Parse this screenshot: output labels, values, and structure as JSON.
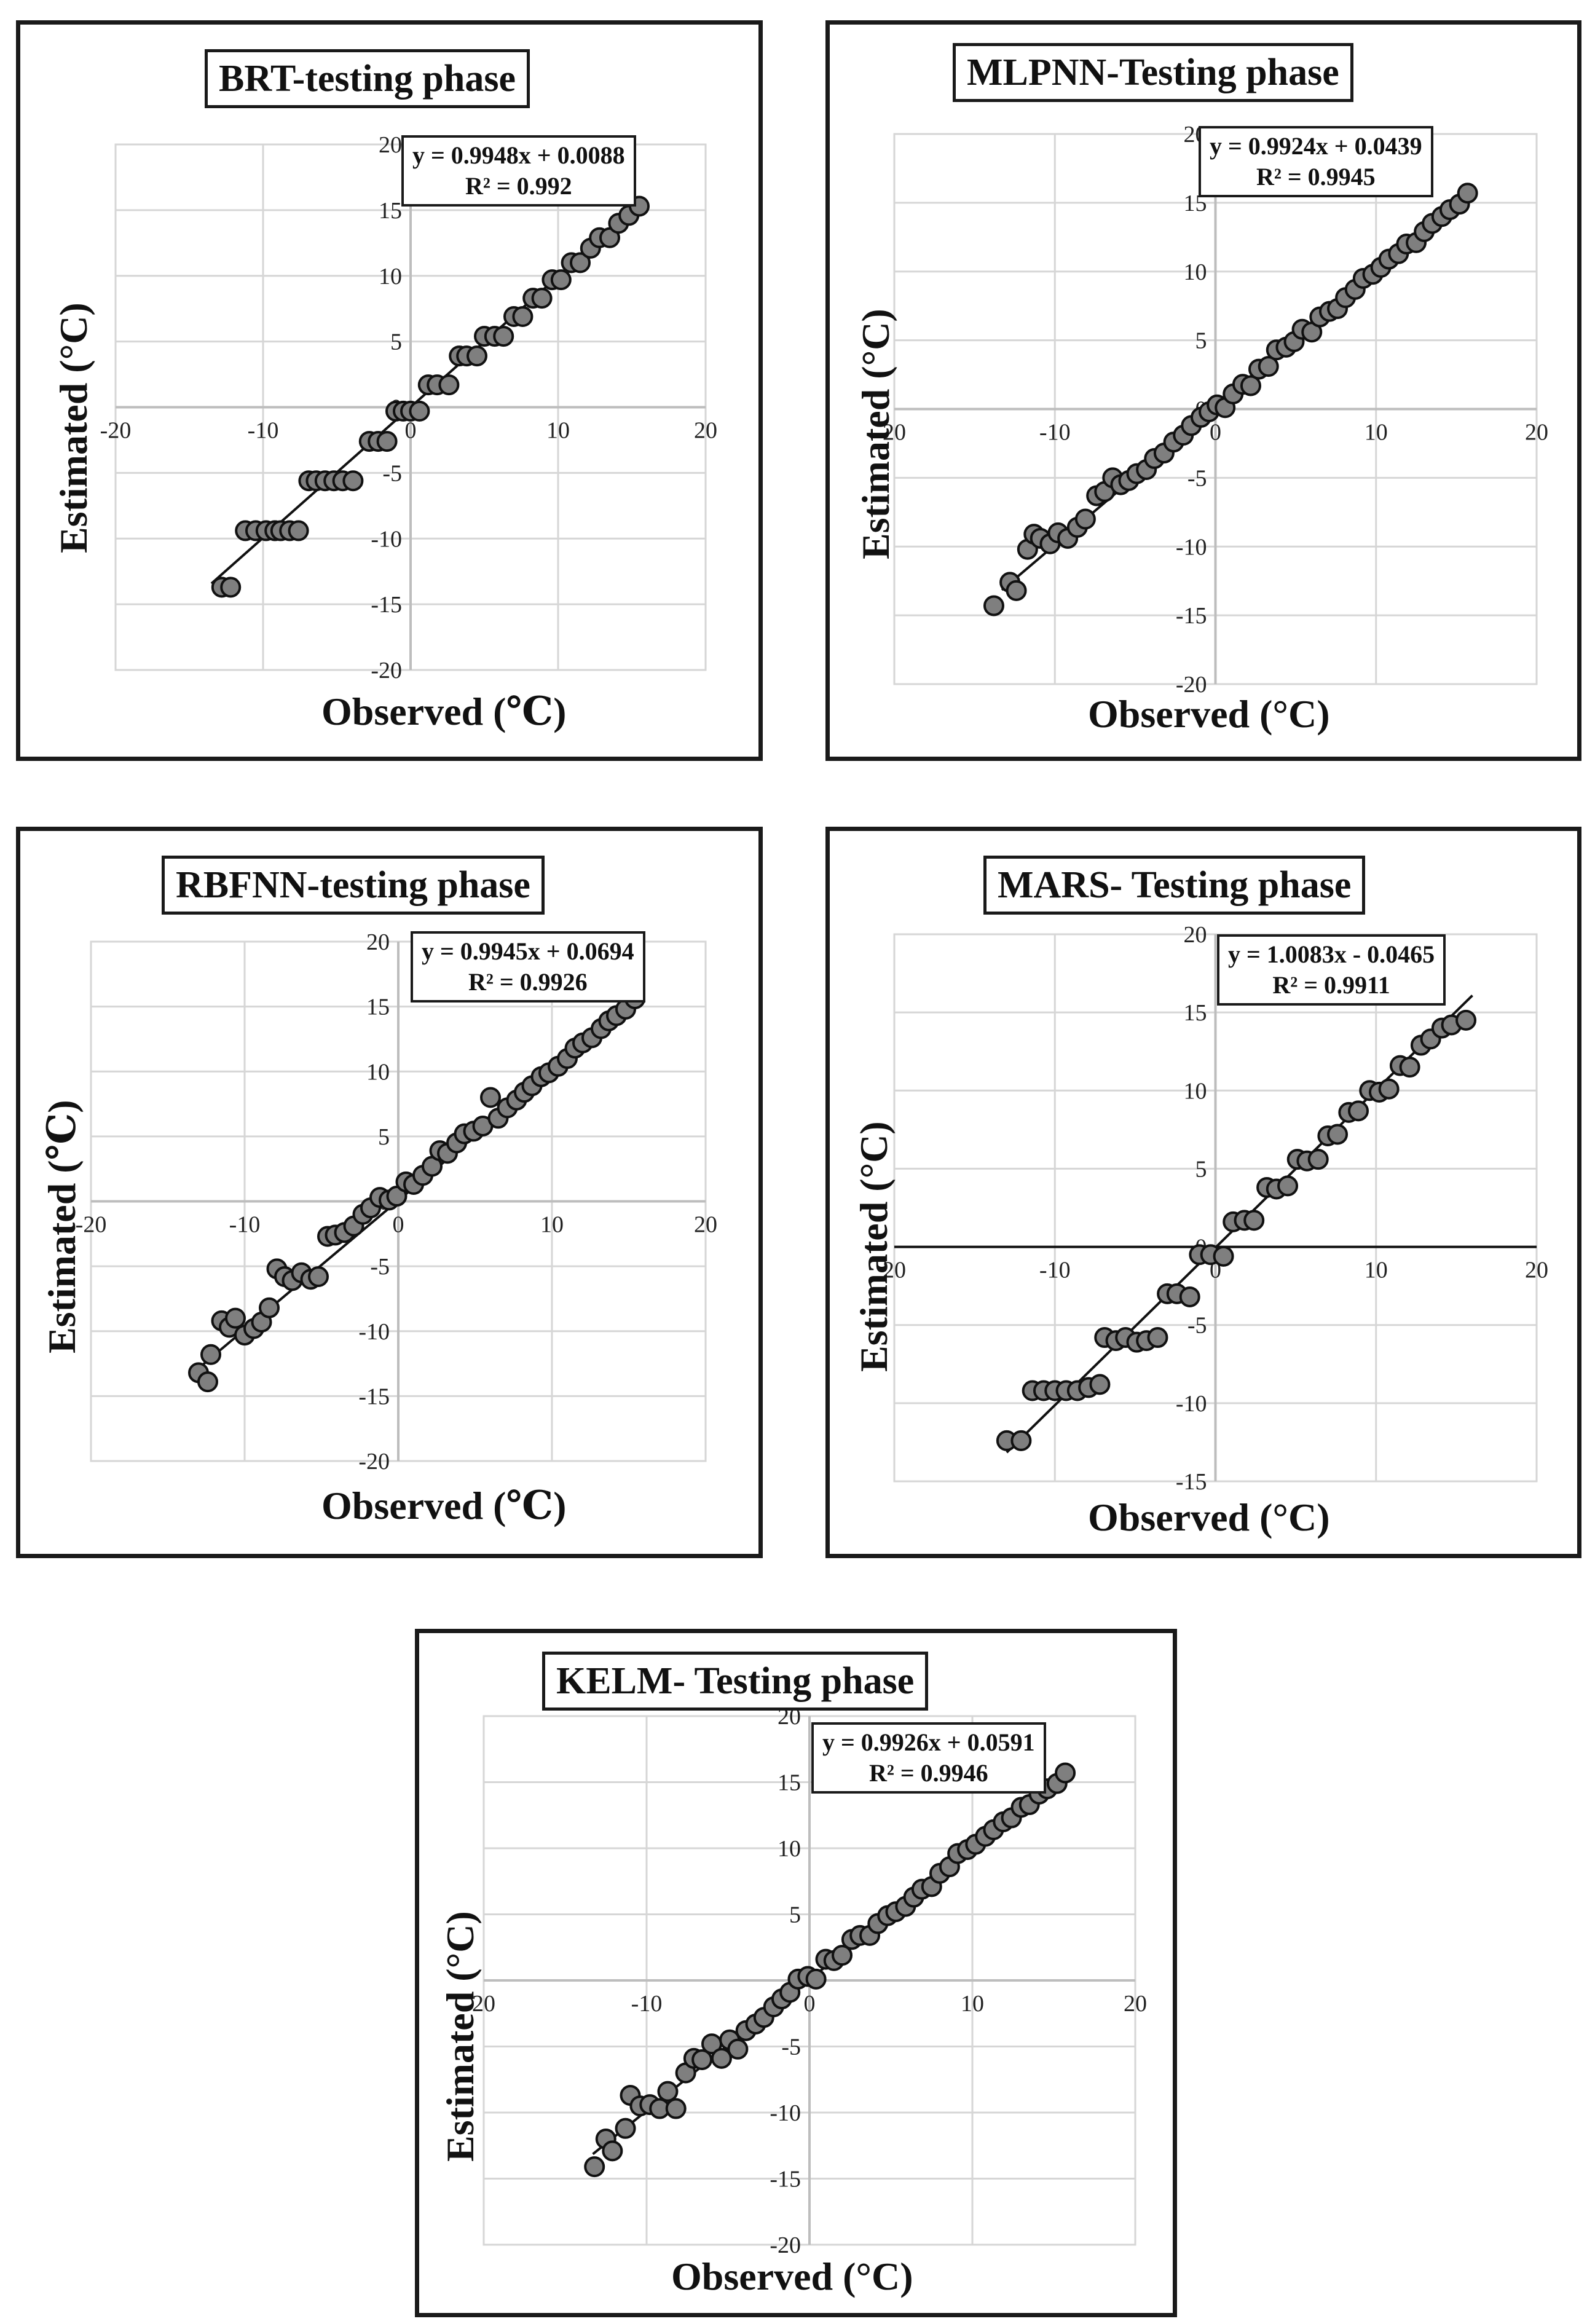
{
  "chart_data": [
    {
      "type": "scatter",
      "title": "BRT-testing phase",
      "equation": "y = 0.9948x + 0.0088",
      "r2": "R² = 0.992",
      "xlabel": "Observed (℃)",
      "ylabel": "Estimated (°C)",
      "xlim": [
        -20,
        20
      ],
      "ylim": [
        -20,
        20
      ],
      "xticks": [
        "-20",
        "-10",
        "0",
        "10",
        "20"
      ],
      "yticks": [
        "20",
        "15",
        "10",
        "5",
        "0",
        "-5",
        "-10",
        "-15",
        "-20"
      ],
      "trend": {
        "slope": 0.9948,
        "intercept": 0.0088,
        "x_range": [
          -13.5,
          15.8
        ]
      },
      "series": [
        {
          "name": "BRT",
          "x": [
            -12.8,
            -12.2,
            -11.2,
            -10.5,
            -9.8,
            -9.2,
            -8.8,
            -8.2,
            -7.6,
            -6.9,
            -6.4,
            -5.8,
            -5.2,
            -4.6,
            -3.9,
            -2.8,
            -2.2,
            -1.6,
            -1.0,
            -0.5,
            0.0,
            0.6,
            1.2,
            1.8,
            2.6,
            3.3,
            3.8,
            4.5,
            5.0,
            5.7,
            6.3,
            7.0,
            7.6,
            8.3,
            8.9,
            9.6,
            10.2,
            10.9,
            11.5,
            12.2,
            12.8,
            13.5,
            14.1,
            14.8,
            15.5
          ],
          "y": [
            -13.7,
            -13.7,
            -9.4,
            -9.4,
            -9.4,
            -9.4,
            -9.4,
            -9.4,
            -9.4,
            -5.6,
            -5.6,
            -5.6,
            -5.6,
            -5.6,
            -5.6,
            -2.6,
            -2.6,
            -2.6,
            -0.3,
            -0.3,
            -0.3,
            -0.3,
            1.7,
            1.7,
            1.7,
            3.9,
            3.9,
            3.9,
            5.4,
            5.4,
            5.4,
            6.9,
            6.9,
            8.3,
            8.3,
            9.7,
            9.7,
            11.0,
            11.0,
            12.1,
            12.9,
            12.9,
            14.0,
            14.6,
            15.3
          ]
        }
      ]
    },
    {
      "type": "scatter",
      "title": "MLPNN-Testing phase",
      "equation": "y = 0.9924x + 0.0439",
      "r2": "R² = 0.9945",
      "xlabel": "Observed (°C)",
      "ylabel": "Estimated (°C)",
      "xlim": [
        -20,
        20
      ],
      "ylim": [
        -20,
        20
      ],
      "xticks": [
        "20",
        "-10",
        "0",
        "10",
        "20"
      ],
      "yticks": [
        "20",
        "15",
        "10",
        "5",
        "0",
        "-5",
        "-10",
        "-15",
        "-20"
      ],
      "trend": {
        "slope": 0.9924,
        "intercept": 0.0439,
        "x_range": [
          -13.3,
          15.8
        ]
      },
      "series": [
        {
          "name": "MLPNN",
          "x": [
            -13.8,
            -12.8,
            -12.4,
            -11.7,
            -11.3,
            -10.9,
            -10.3,
            -9.8,
            -9.2,
            -8.6,
            -8.1,
            -7.4,
            -6.9,
            -6.4,
            -5.9,
            -5.4,
            -4.9,
            -4.3,
            -3.8,
            -3.2,
            -2.6,
            -2.0,
            -1.5,
            -0.9,
            -0.4,
            0.1,
            0.6,
            1.1,
            1.7,
            2.2,
            2.7,
            3.3,
            3.8,
            4.4,
            4.9,
            5.4,
            6.0,
            6.5,
            7.1,
            7.6,
            8.1,
            8.7,
            9.2,
            9.8,
            10.3,
            10.8,
            11.4,
            11.9,
            12.5,
            13.0,
            13.5,
            14.1,
            14.6,
            15.2,
            15.7
          ],
          "y": [
            -14.3,
            -12.6,
            -13.2,
            -10.2,
            -9.1,
            -9.4,
            -9.8,
            -9.0,
            -9.4,
            -8.6,
            -8.0,
            -6.3,
            -6.0,
            -5.0,
            -5.5,
            -5.2,
            -4.7,
            -4.4,
            -3.6,
            -3.2,
            -2.4,
            -1.9,
            -1.2,
            -0.6,
            -0.2,
            0.3,
            0.1,
            1.1,
            1.8,
            1.7,
            2.9,
            3.1,
            4.3,
            4.5,
            4.9,
            5.8,
            5.6,
            6.7,
            7.1,
            7.3,
            8.1,
            8.7,
            9.5,
            9.8,
            10.3,
            10.9,
            11.3,
            12.0,
            12.1,
            12.9,
            13.5,
            14.0,
            14.5,
            14.9,
            15.7
          ]
        }
      ]
    },
    {
      "type": "scatter",
      "title": "RBFNN-testing phase",
      "equation": "y = 0.9945x + 0.0694",
      "r2": "R² = 0.9926",
      "xlabel": "Observed  (℃)",
      "ylabel": "Estimated (℃)",
      "xlim": [
        -20,
        20
      ],
      "ylim": [
        -20,
        20
      ],
      "xticks": [
        "-20",
        "-10",
        "0",
        "10",
        "20"
      ],
      "yticks": [
        "20",
        "15",
        "10",
        "5",
        "0",
        "-5",
        "-10",
        "-15",
        "-20"
      ],
      "trend": {
        "slope": 0.9945,
        "intercept": 0.0694,
        "x_range": [
          -13.5,
          15.8
        ]
      },
      "series": [
        {
          "name": "RBFNN",
          "x": [
            -13.0,
            -12.4,
            -12.2,
            -11.5,
            -11.0,
            -10.6,
            -10.0,
            -9.4,
            -8.9,
            -8.4,
            -7.9,
            -7.4,
            -6.9,
            -6.3,
            -5.7,
            -5.2,
            -4.6,
            -4.1,
            -3.5,
            -2.9,
            -2.3,
            -1.8,
            -1.2,
            -0.6,
            -0.1,
            0.5,
            1.0,
            1.6,
            2.2,
            2.7,
            3.2,
            3.8,
            4.3,
            4.9,
            5.5,
            6.0,
            6.5,
            7.1,
            7.7,
            8.2,
            8.7,
            9.3,
            9.8,
            10.4,
            11.0,
            11.5,
            12.0,
            12.6,
            13.2,
            13.7,
            14.2,
            14.8,
            15.4
          ],
          "y": [
            -13.2,
            -13.9,
            -11.8,
            -9.2,
            -9.7,
            -9.0,
            -10.3,
            -9.8,
            -9.3,
            -8.2,
            -5.2,
            -5.8,
            -6.1,
            -5.5,
            -6.0,
            -5.8,
            -2.7,
            -2.6,
            -2.4,
            -1.9,
            -1.0,
            -0.5,
            0.3,
            0.1,
            0.4,
            1.5,
            1.3,
            2.0,
            2.7,
            3.9,
            3.7,
            4.5,
            5.2,
            5.4,
            5.8,
            8.0,
            6.4,
            7.2,
            7.8,
            8.4,
            8.9,
            9.6,
            9.9,
            10.4,
            11.0,
            11.8,
            12.2,
            12.6,
            13.3,
            13.9,
            14.3,
            14.8,
            15.6
          ]
        }
      ]
    },
    {
      "type": "scatter",
      "title": "MARS- Testing phase",
      "equation": "y = 1.0083x - 0.0465",
      "r2": "R² = 0.9911",
      "xlabel": "Observed (°C)",
      "ylabel": "Estimated (°C)",
      "xlim": [
        -20,
        20
      ],
      "ylim": [
        -15,
        20
      ],
      "xticks": [
        "20",
        "-10",
        "0",
        "10",
        "20"
      ],
      "yticks": [
        "20",
        "15",
        "10",
        "5",
        "0",
        "-5",
        "-10",
        "-15"
      ],
      "trend": {
        "slope": 1.0083,
        "intercept": -0.0465,
        "x_range": [
          -13.0,
          16.0
        ]
      },
      "series": [
        {
          "name": "MARS",
          "x": [
            -13.0,
            -12.1,
            -11.4,
            -10.7,
            -10.0,
            -9.3,
            -8.6,
            -7.9,
            -7.2,
            -6.9,
            -6.2,
            -5.6,
            -4.9,
            -4.3,
            -3.6,
            -3.0,
            -2.4,
            -1.6,
            -1.0,
            -0.3,
            0.5,
            1.1,
            1.8,
            2.4,
            3.2,
            3.8,
            4.5,
            5.1,
            5.7,
            6.4,
            7.0,
            7.6,
            8.3,
            8.9,
            9.6,
            10.2,
            10.8,
            11.5,
            12.1,
            12.8,
            13.4,
            14.1,
            14.7,
            15.6
          ],
          "y": [
            -12.4,
            -12.4,
            -9.2,
            -9.2,
            -9.2,
            -9.2,
            -9.2,
            -9.0,
            -8.8,
            -5.8,
            -6.0,
            -5.8,
            -6.1,
            -6.0,
            -5.8,
            -3.0,
            -3.0,
            -3.2,
            -0.5,
            -0.5,
            -0.6,
            1.6,
            1.7,
            1.7,
            3.8,
            3.7,
            3.9,
            5.6,
            5.5,
            5.6,
            7.1,
            7.2,
            8.6,
            8.7,
            10.0,
            9.9,
            10.1,
            11.6,
            11.5,
            12.9,
            13.3,
            14.0,
            14.2,
            14.5
          ]
        }
      ]
    },
    {
      "type": "scatter",
      "title": "KELM- Testing phase",
      "equation": "y = 0.9926x + 0.0591",
      "r2": "R² = 0.9946",
      "xlabel": "Observed (°C)",
      "ylabel": "Estimated (°C)",
      "xlim": [
        -20,
        20
      ],
      "ylim": [
        -20,
        20
      ],
      "xticks": [
        "20",
        "-10",
        "0",
        "10",
        "20"
      ],
      "yticks": [
        "20",
        "15",
        "10",
        "5",
        "0",
        "-5",
        "-10",
        "-15",
        "-20"
      ],
      "trend": {
        "slope": 0.9926,
        "intercept": 0.0591,
        "x_range": [
          -13.3,
          15.8
        ]
      },
      "series": [
        {
          "name": "KELM",
          "x": [
            -13.2,
            -12.5,
            -12.1,
            -11.3,
            -11.0,
            -10.4,
            -9.8,
            -9.2,
            -8.7,
            -8.2,
            -7.6,
            -7.1,
            -6.6,
            -6.0,
            -5.4,
            -4.9,
            -4.4,
            -3.9,
            -3.3,
            -2.8,
            -2.2,
            -1.7,
            -1.2,
            -0.7,
            -0.1,
            0.4,
            1.0,
            1.5,
            2.0,
            2.6,
            3.1,
            3.7,
            4.2,
            4.8,
            5.3,
            5.9,
            6.4,
            6.9,
            7.5,
            8.0,
            8.6,
            9.1,
            9.7,
            10.2,
            10.8,
            11.3,
            11.9,
            12.4,
            13.0,
            13.5,
            14.1,
            14.6,
            15.2,
            15.7
          ],
          "y": [
            -14.1,
            -12.0,
            -12.9,
            -11.2,
            -8.7,
            -9.5,
            -9.4,
            -9.7,
            -8.4,
            -9.7,
            -7.0,
            -5.9,
            -6.0,
            -4.8,
            -5.9,
            -4.5,
            -5.2,
            -3.8,
            -3.3,
            -2.8,
            -2.0,
            -1.4,
            -0.9,
            0.1,
            0.3,
            0.1,
            1.6,
            1.5,
            1.9,
            3.1,
            3.4,
            3.4,
            4.3,
            4.9,
            5.2,
            5.6,
            6.3,
            6.9,
            7.1,
            8.1,
            8.6,
            9.6,
            9.9,
            10.3,
            10.9,
            11.4,
            12.0,
            12.3,
            13.1,
            13.3,
            14.1,
            14.5,
            14.9,
            15.7
          ]
        }
      ]
    }
  ]
}
